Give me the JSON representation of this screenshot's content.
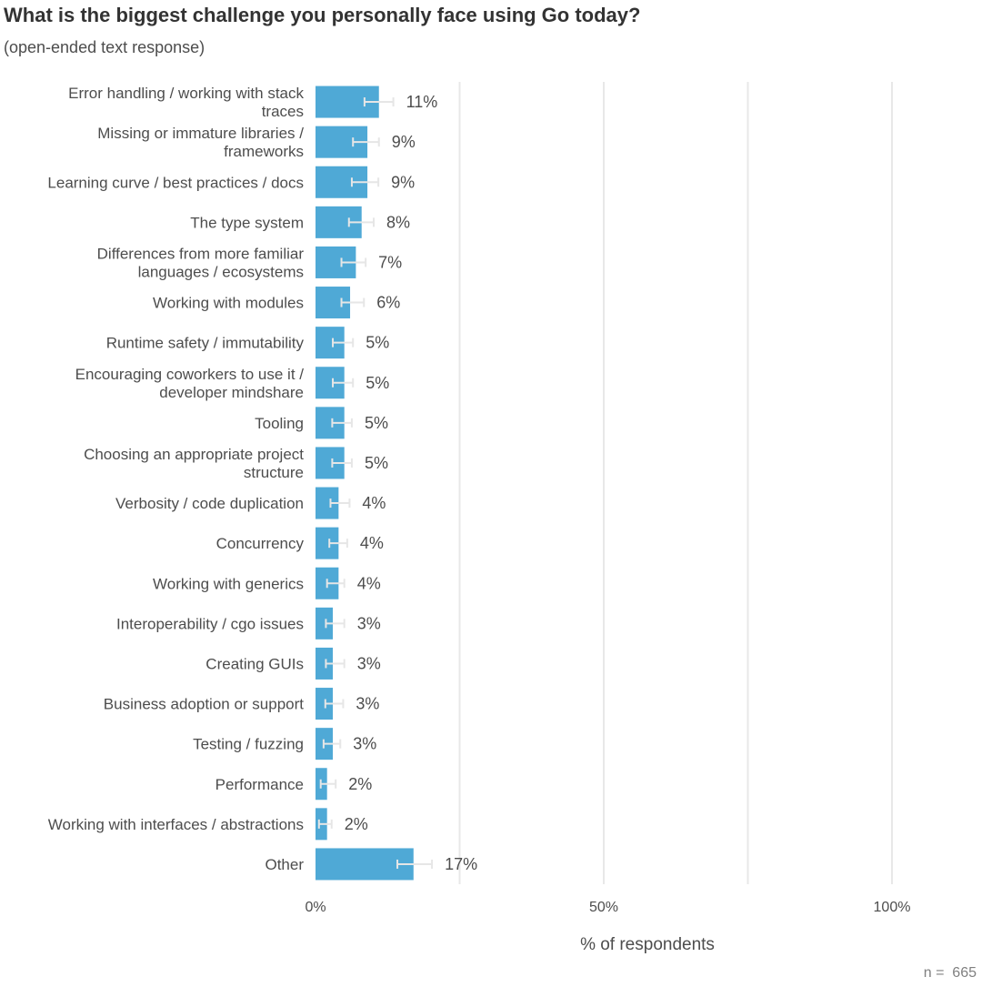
{
  "title": "What is the biggest challenge you personally face using Go today?",
  "subtitle": "(open-ended text response)",
  "note": "n =  665",
  "colors": {
    "bar": "#4fa9d6",
    "gridline": "#e8e8e8",
    "error_bar": "#e6e6e6"
  },
  "chart_data": {
    "type": "bar",
    "orientation": "horizontal",
    "title": "What is the biggest challenge you personally face using Go today?",
    "subtitle": "(open-ended text response)",
    "xlabel": "% of respondents",
    "xlim": [
      0,
      115
    ],
    "x_ticks": [
      {
        "value": 0,
        "label": "0%"
      },
      {
        "value": 50,
        "label": "50%"
      },
      {
        "value": 100,
        "label": "100%"
      }
    ],
    "gridlines": [
      25,
      50,
      75,
      100
    ],
    "grid": true,
    "legend": "none",
    "categories": [
      [
        "Error handling / working with stack",
        "traces"
      ],
      [
        "Missing or immature libraries /",
        "frameworks"
      ],
      [
        "Learning curve / best practices / docs"
      ],
      [
        "The type system"
      ],
      [
        "Differences from more familiar",
        "languages / ecosystems"
      ],
      [
        "Working with modules"
      ],
      [
        "Runtime safety / immutability"
      ],
      [
        "Encouraging coworkers to use it /",
        "developer mindshare"
      ],
      [
        "Tooling"
      ],
      [
        "Choosing an appropriate project",
        "structure"
      ],
      [
        "Verbosity / code duplication"
      ],
      [
        "Concurrency"
      ],
      [
        "Working with generics"
      ],
      [
        "Interoperability / cgo issues"
      ],
      [
        "Creating GUIs"
      ],
      [
        "Business adoption or support"
      ],
      [
        "Testing / fuzzing"
      ],
      [
        "Performance"
      ],
      [
        "Working with interfaces / abstractions"
      ],
      [
        "Other"
      ]
    ],
    "values": [
      11,
      9,
      9,
      8,
      7,
      6,
      5,
      5,
      5,
      5,
      4,
      4,
      4,
      3,
      3,
      3,
      3,
      2,
      2,
      17
    ],
    "value_labels": [
      "11%",
      "9%",
      "9%",
      "8%",
      "7%",
      "6%",
      "5%",
      "5%",
      "5%",
      "5%",
      "4%",
      "4%",
      "4%",
      "3%",
      "3%",
      "3%",
      "3%",
      "2%",
      "2%",
      "17%"
    ],
    "error_bars": [
      [
        8.5,
        13.5
      ],
      [
        6.5,
        11.0
      ],
      [
        6.3,
        10.9
      ],
      [
        5.8,
        10.1
      ],
      [
        4.5,
        8.7
      ],
      [
        4.5,
        8.4
      ],
      [
        3.0,
        6.5
      ],
      [
        3.0,
        6.5
      ],
      [
        2.9,
        6.3
      ],
      [
        2.9,
        6.3
      ],
      [
        2.6,
        5.9
      ],
      [
        2.4,
        5.5
      ],
      [
        2.0,
        5.0
      ],
      [
        1.8,
        5.0
      ],
      [
        1.8,
        5.0
      ],
      [
        1.7,
        4.8
      ],
      [
        1.4,
        4.3
      ],
      [
        0.9,
        3.5
      ],
      [
        0.6,
        2.8
      ],
      [
        14.2,
        20.2
      ]
    ]
  }
}
